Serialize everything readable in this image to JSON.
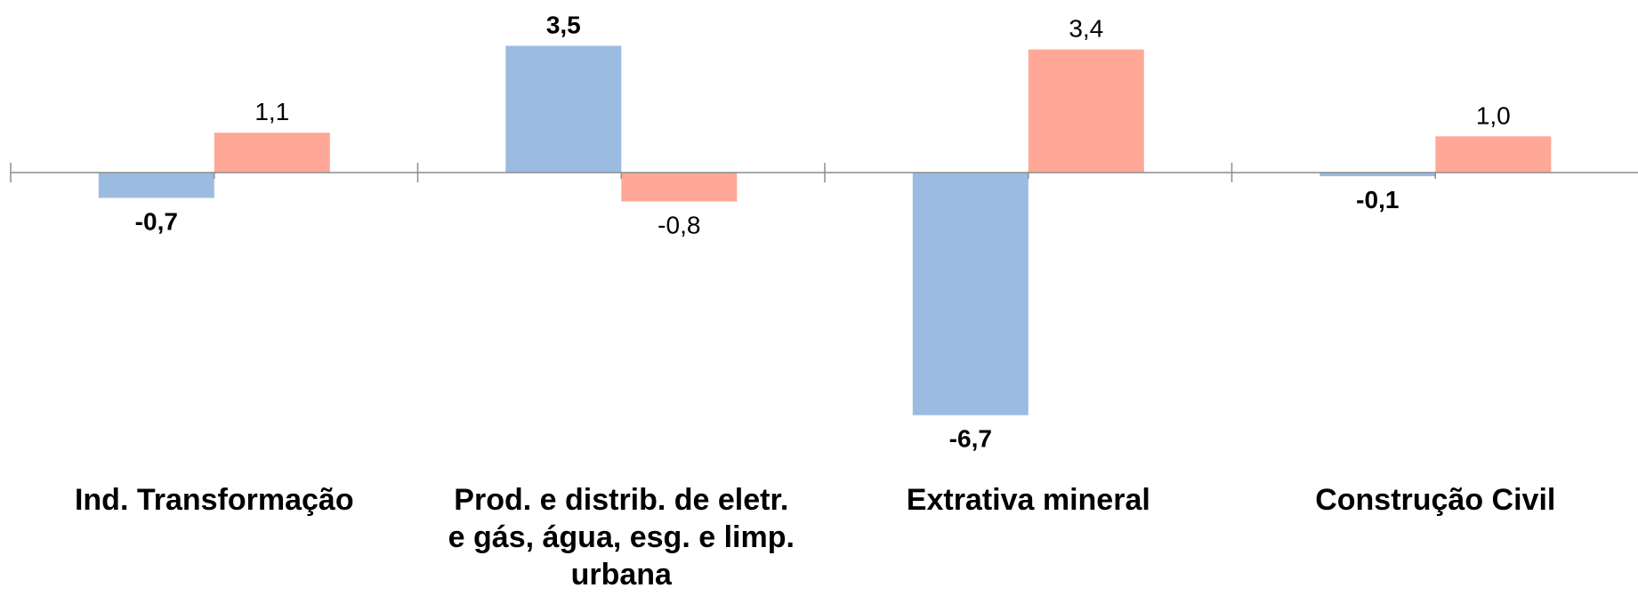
{
  "chart_data": {
    "type": "bar",
    "categories": [
      [
        "Ind. Transformação"
      ],
      [
        "Prod. e distrib. de eletr.",
        "e gás, água, esg. e limp.",
        "urbana"
      ],
      [
        "Extrativa mineral"
      ],
      [
        "Construção Civil"
      ]
    ],
    "series": [
      {
        "values": [
          -0.7,
          3.5,
          -6.7,
          -0.1
        ],
        "labels": [
          "-0,7",
          "3,5",
          "-6,7",
          "-0,1"
        ],
        "color": "#9BBBE0",
        "label_bold": true
      },
      {
        "values": [
          1.1,
          -0.8,
          3.4,
          1.0
        ],
        "labels": [
          "1,1",
          "-0,8",
          "3,4",
          "1,0"
        ],
        "color": "#FFA898",
        "label_bold": false
      }
    ],
    "axis_color": "#8C8C8C",
    "title": "",
    "xlabel": "",
    "ylabel": "",
    "grid": false,
    "legend": "none"
  }
}
